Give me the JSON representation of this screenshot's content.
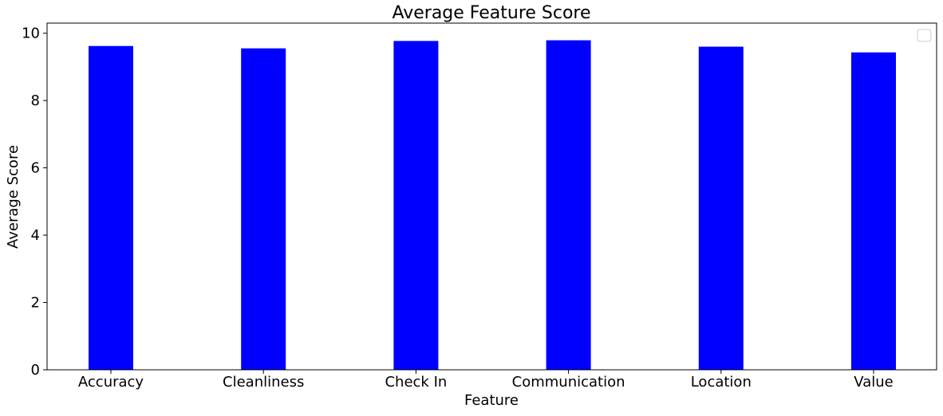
{
  "chart_data": {
    "type": "bar",
    "title": "Average Feature Score",
    "xlabel": "Feature",
    "ylabel": "Average Score",
    "categories": [
      "Accuracy",
      "Cleanliness",
      "Check In",
      "Communication",
      "Location",
      "Value"
    ],
    "values": [
      9.62,
      9.55,
      9.77,
      9.79,
      9.6,
      9.43
    ],
    "ylim": [
      0,
      10.3
    ],
    "yticks": [
      0,
      2,
      4,
      6,
      8,
      10
    ],
    "grid": false,
    "legend": "top-right",
    "colors": {
      "bar": "#0000ff",
      "axis": "#000000",
      "legend_border": "#cccccc"
    }
  }
}
